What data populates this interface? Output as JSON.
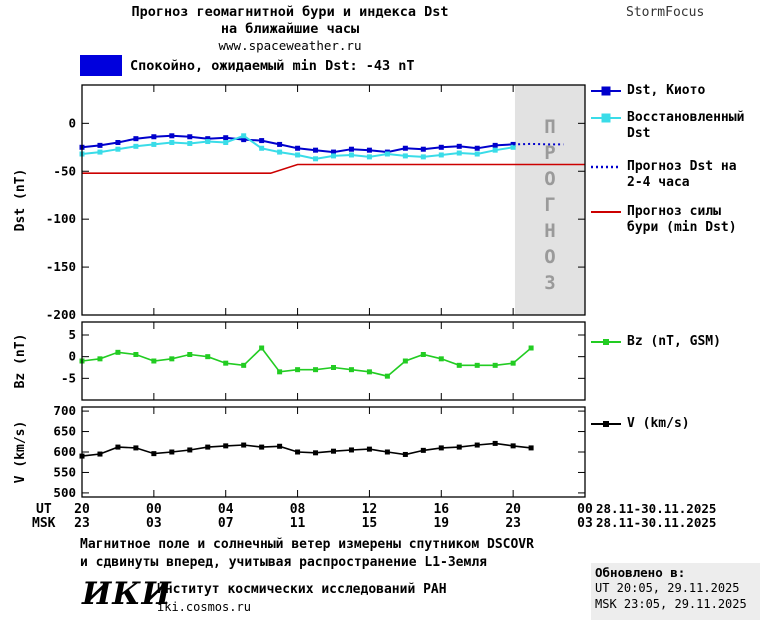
{
  "header": {
    "title_line1": "Прогноз геомагнитной бури и индекса Dst",
    "title_line2": "на ближайшие часы",
    "site": "www.spaceweather.ru",
    "brand": "StormFocus",
    "status_text": "Спокойно, ожидаемый min Dst: -43 nT",
    "status_color": "#0000dd"
  },
  "chart_data": [
    {
      "id": "dst",
      "type": "line",
      "ylabel": "Dst (nT)",
      "ylim": [
        -200,
        40
      ],
      "yticks": [
        0,
        -50,
        -100,
        -150,
        -200
      ],
      "forecast_region": {
        "x_start": 24.1,
        "x_end": 28,
        "label": "ПРОГНОЗ",
        "fill": "#e2e2e2",
        "text_color": "#9a9a9a"
      },
      "series": [
        {
          "name": "Dst, Киото",
          "color": "#0000cc",
          "marker": true,
          "width": 2,
          "x": [
            0,
            1,
            2,
            3,
            4,
            5,
            6,
            7,
            8,
            9,
            10,
            11,
            12,
            13,
            14,
            15,
            16,
            17,
            18,
            19,
            20,
            21,
            22,
            23,
            24
          ],
          "values": [
            -25,
            -23,
            -20,
            -16,
            -14,
            -13,
            -14,
            -16,
            -15,
            -17,
            -18,
            -22,
            -26,
            -28,
            -30,
            -27,
            -28,
            -30,
            -26,
            -27,
            -25,
            -24,
            -26,
            -23,
            -22
          ]
        },
        {
          "name": "Восстановленный Dst",
          "color": "#3adce8",
          "marker": true,
          "width": 2,
          "x": [
            0,
            1,
            2,
            3,
            4,
            5,
            6,
            7,
            8,
            9,
            10,
            11,
            12,
            13,
            14,
            15,
            16,
            17,
            18,
            19,
            20,
            21,
            22,
            23,
            24
          ],
          "values": [
            -32,
            -30,
            -27,
            -24,
            -22,
            -20,
            -21,
            -19,
            -20,
            -13,
            -26,
            -30,
            -33,
            -37,
            -34,
            -33,
            -35,
            -32,
            -34,
            -35,
            -33,
            -31,
            -32,
            -28,
            -25
          ]
        },
        {
          "name": "Прогноз Dst на 2-4 часа",
          "color": "#0000cc",
          "style": "dotted",
          "marker": false,
          "width": 2,
          "x": [
            24,
            25,
            26,
            26.8
          ],
          "values": [
            -22,
            -21.5,
            -22,
            -22
          ]
        },
        {
          "name": "Прогноз силы бури (min Dst)",
          "color": "#cc0000",
          "marker": false,
          "width": 1.6,
          "x": [
            0,
            10.5,
            12,
            28
          ],
          "values": [
            -52,
            -52,
            -43,
            -43
          ]
        }
      ]
    },
    {
      "id": "bz",
      "type": "line",
      "ylabel": "Bz (nT)",
      "ylim": [
        -10,
        8
      ],
      "yticks": [
        5,
        0,
        -5
      ],
      "series": [
        {
          "name": "Bz (nT, GSM)",
          "color": "#22cc22",
          "marker": true,
          "width": 1.6,
          "x": [
            0,
            1,
            2,
            3,
            4,
            5,
            6,
            7,
            8,
            9,
            10,
            11,
            12,
            13,
            14,
            15,
            16,
            17,
            18,
            19,
            20,
            21,
            22,
            23,
            24,
            25
          ],
          "values": [
            -1,
            -0.5,
            1,
            0.5,
            -1,
            -0.5,
            0.5,
            0,
            -1.5,
            -2,
            2,
            -3.5,
            -3,
            -3,
            -2.5,
            -3,
            -3.5,
            -4.5,
            -1,
            0.5,
            -0.5,
            -2,
            -2,
            -2,
            -1.5,
            2
          ]
        }
      ]
    },
    {
      "id": "v",
      "type": "line",
      "ylabel": "V (km/s)",
      "ylim": [
        490,
        710
      ],
      "yticks": [
        700,
        650,
        600,
        550,
        500
      ],
      "series": [
        {
          "name": "V (km/s)",
          "color": "#000000",
          "marker": true,
          "width": 1.6,
          "x": [
            0,
            1,
            2,
            3,
            4,
            5,
            6,
            7,
            8,
            9,
            10,
            11,
            12,
            13,
            14,
            15,
            16,
            17,
            18,
            19,
            20,
            21,
            22,
            23,
            24,
            25
          ],
          "values": [
            590,
            595,
            612,
            610,
            596,
            600,
            605,
            612,
            615,
            617,
            612,
            614,
            600,
            598,
            602,
            605,
            607,
            600,
            594,
            604,
            610,
            612,
            617,
            621,
            615,
            610
          ]
        }
      ]
    }
  ],
  "xaxis": {
    "xlim": [
      0,
      28
    ],
    "tick_hours": [
      0,
      4,
      8,
      12,
      16,
      20,
      24,
      28
    ],
    "ut_label": "UT",
    "msk_label": "MSK",
    "ut_ticks": [
      "20",
      "00",
      "04",
      "08",
      "12",
      "16",
      "20",
      "00"
    ],
    "msk_ticks": [
      "23",
      "03",
      "07",
      "11",
      "15",
      "19",
      "23",
      "03"
    ],
    "ut_date": "28.11-30.11.2025",
    "msk_date": "28.11-30.11.2025"
  },
  "footer": {
    "note_line1": "Магнитное поле и солнечный ветер измерены спутником DSCOVR",
    "note_line2": "и сдвинуты вперед, учитывая распространение L1-Земля",
    "updated_label": "Обновлено в:",
    "updated_ut": "UT  20:05, 29.11.2025",
    "updated_msk": "MSK 23:05, 29.11.2025",
    "logo": "ИКИ",
    "institute": "Институт космических исследований РАН",
    "institute_site": "iki.cosmos.ru"
  }
}
